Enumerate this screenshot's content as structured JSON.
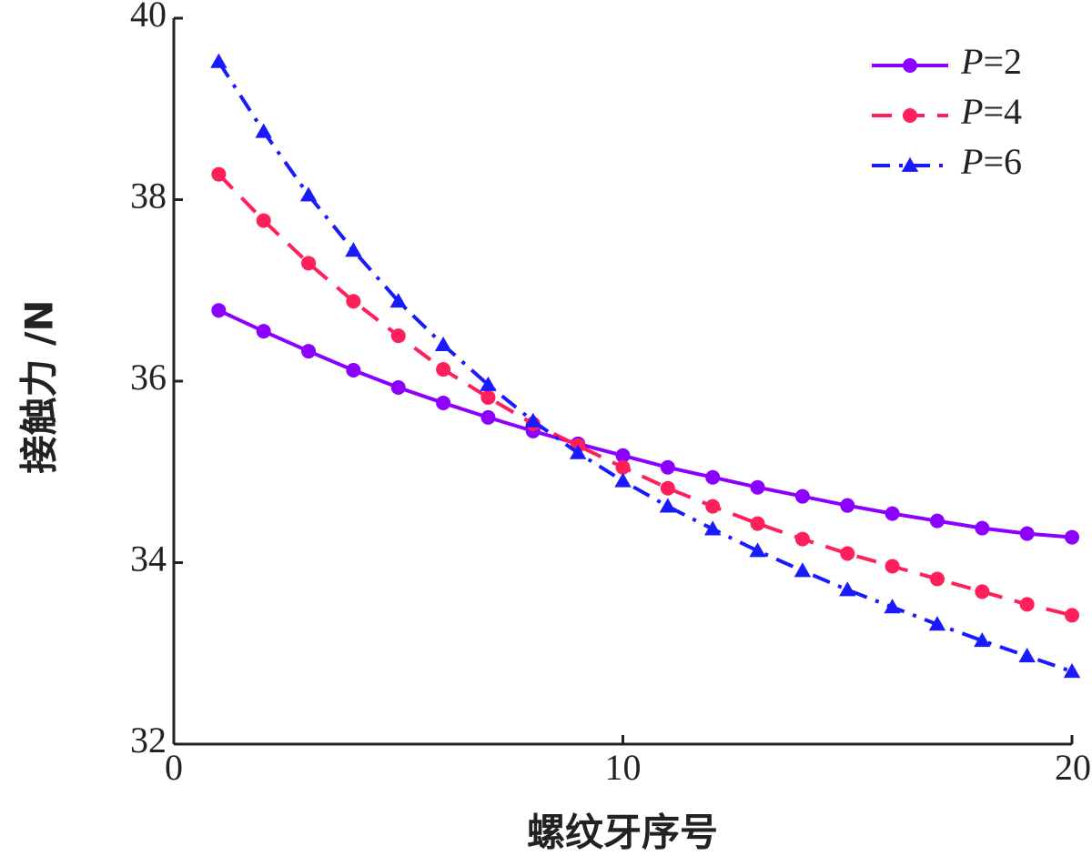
{
  "chart_data": {
    "type": "line",
    "title": "",
    "xlabel": "螺纹牙序号",
    "ylabel": "接触力 /N",
    "xlim": [
      0,
      20
    ],
    "ylim": [
      32,
      40
    ],
    "xticks": [
      0,
      10,
      20
    ],
    "yticks": [
      32,
      34,
      36,
      38,
      40
    ],
    "grid": false,
    "legend_position": "top-right",
    "x": [
      1,
      2,
      3,
      4,
      5,
      6,
      7,
      8,
      9,
      10,
      11,
      12,
      13,
      14,
      15,
      16,
      17,
      18,
      19,
      20
    ],
    "series": [
      {
        "name": "P=2",
        "name_italic": "P",
        "name_rest": "=2",
        "color": "#8b00ff",
        "marker": "circle",
        "line_style": "solid",
        "values": [
          36.78,
          36.55,
          36.33,
          36.12,
          35.93,
          35.76,
          35.6,
          35.45,
          35.31,
          35.18,
          35.05,
          34.94,
          34.83,
          34.73,
          34.63,
          34.54,
          34.46,
          34.38,
          34.32,
          34.28
        ]
      },
      {
        "name": "P=4",
        "name_italic": "P",
        "name_rest": "=4",
        "color": "#ff1f5a",
        "marker": "circle",
        "line_style": "dashed",
        "values": [
          38.28,
          37.77,
          37.3,
          36.88,
          36.5,
          36.13,
          35.82,
          35.53,
          35.29,
          35.05,
          34.82,
          34.62,
          34.43,
          34.26,
          34.1,
          33.96,
          33.82,
          33.68,
          33.54,
          33.42
        ]
      },
      {
        "name": "P=6",
        "name_italic": "P",
        "name_rest": "=6",
        "color": "#1a1aff",
        "marker": "triangle",
        "line_style": "dash-dot",
        "values": [
          39.52,
          38.75,
          38.05,
          37.44,
          36.88,
          36.4,
          35.96,
          35.56,
          35.21,
          34.9,
          34.62,
          34.37,
          34.13,
          33.91,
          33.7,
          33.51,
          33.32,
          33.14,
          32.97,
          32.8
        ]
      }
    ]
  }
}
